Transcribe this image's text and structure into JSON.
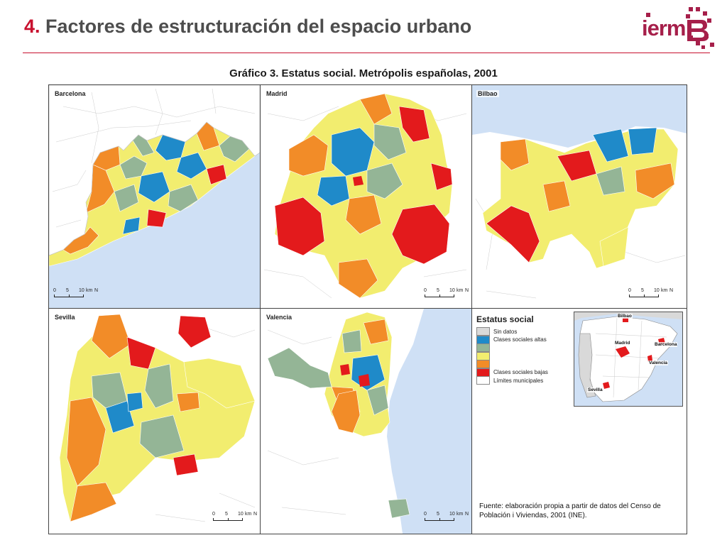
{
  "header": {
    "number": "4.",
    "title": "Factores de estructuración del espacio urbano",
    "logo_text": "ierm"
  },
  "figure": {
    "title": "Gráfico 3. Estatus social. Metrópolis españolas, 2001"
  },
  "colors": {
    "sin_datos": "#d9d9d9",
    "altas": "#1f8ac9",
    "medio_altas": "#94b596",
    "medias": "#f2ed6f",
    "medio_bajas": "#f28c28",
    "bajas": "#e31a1c",
    "sea": "#cfe0f5",
    "brand": "#a61f4a",
    "accent": "#c8102e"
  },
  "panels": [
    {
      "name": "Barcelona"
    },
    {
      "name": "Madrid"
    },
    {
      "name": "Bilbao"
    },
    {
      "name": "Sevilla"
    },
    {
      "name": "Valencia"
    }
  ],
  "scale": {
    "l0": "0",
    "l5": "5",
    "l10": "10",
    "unit": "km",
    "north": "N"
  },
  "legend": {
    "title": "Estatus social",
    "items": [
      {
        "label": "Sin datos",
        "color": "#d9d9d9"
      },
      {
        "label": "Clases sociales altas",
        "color": "#1f8ac9"
      },
      {
        "label": "",
        "color": "#94b596"
      },
      {
        "label": "",
        "color": "#f2ed6f"
      },
      {
        "label": "",
        "color": "#f28c28"
      },
      {
        "label": "Clases sociales bajas",
        "color": "#e31a1c"
      },
      {
        "label": "Límites municipales",
        "color": "#ffffff"
      }
    ]
  },
  "inset": {
    "labels": {
      "bilbao": "Bilbao",
      "madrid": "Madrid",
      "barcelona": "Barcelona",
      "valencia": "Valencia",
      "sevilla": "Sevilla"
    }
  },
  "source": "Fuente: elaboración propia a partir de datos del Censo de Población i Viviendas, 2001 (INE)."
}
